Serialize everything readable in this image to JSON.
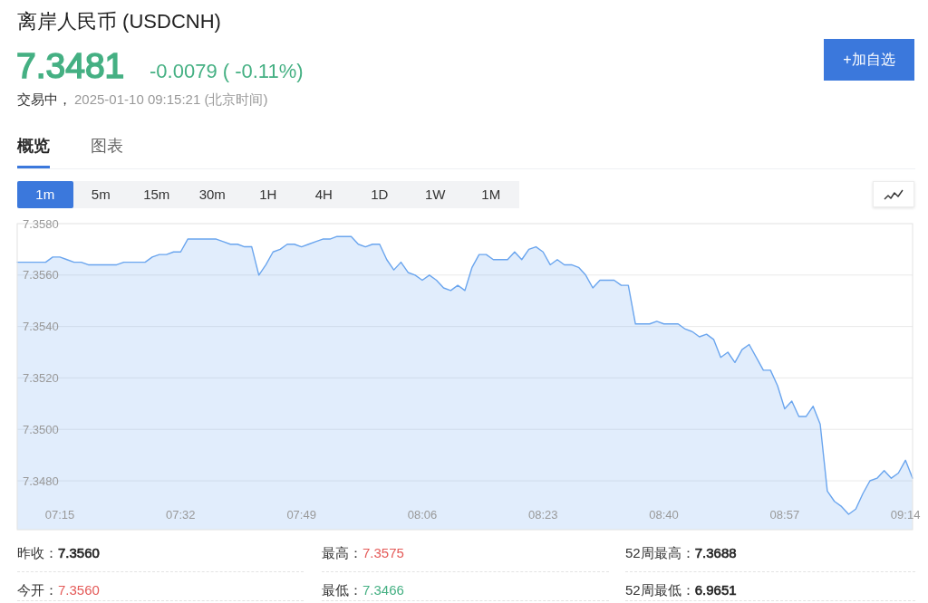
{
  "chart_data": {
    "type": "area",
    "title": "离岸人民币 (USDCNH)",
    "annotations": [
      "7.3481",
      "-0.0079 ( -0.11%)",
      "交易中，",
      "2025-01-10 09:15:21 (北京时间)",
      "+加自选",
      "概览",
      "图表",
      "1m",
      "5m",
      "15m",
      "30m",
      "1H",
      "4H",
      "1D",
      "1W",
      "1M",
      "昨收：",
      "7.3560",
      "最高：",
      "7.3575",
      "52周最高：",
      "7.3688",
      "今开：",
      "7.3560",
      "最低：",
      "7.3466",
      "52周最低：",
      "6.9651"
    ],
    "x": [
      7.15,
      7.1667,
      7.1833,
      7.2,
      7.2167,
      7.2333,
      7.25,
      7.2667,
      7.2833,
      7.3,
      7.3167,
      7.3333,
      7.35,
      7.3667,
      7.3833,
      7.4,
      7.4167,
      7.4333,
      7.45,
      7.4667,
      7.4833,
      7.5,
      7.5167,
      7.5333,
      7.55,
      7.5667,
      7.5833,
      7.6,
      7.6167,
      7.6333,
      7.65,
      7.6667,
      7.6833,
      7.7,
      7.7167,
      7.7333,
      7.75,
      7.7667,
      7.7833,
      7.8,
      7.8167,
      7.8333,
      7.85,
      7.8667,
      7.8833,
      7.9,
      7.9167,
      7.9333,
      7.95,
      7.9667,
      7.9833,
      8,
      8.0167,
      8.0333,
      8.05,
      8.0667,
      8.0833,
      8.1,
      8.1167,
      8.1333,
      8.15,
      8.1667,
      8.1833,
      8.2,
      8.2167,
      8.2333,
      8.25,
      8.2667,
      8.2833,
      8.3,
      8.3167,
      8.3333,
      8.35,
      8.3667,
      8.3833,
      8.4,
      8.4167,
      8.4333,
      8.45,
      8.4667,
      8.4833,
      8.5,
      8.5167,
      8.5333,
      8.55,
      8.5667,
      8.5833,
      8.6,
      8.6167,
      8.6333,
      8.65,
      8.6667,
      8.6833,
      8.7,
      8.7167,
      8.7333,
      8.75,
      8.7667,
      8.7833,
      8.8,
      8.8167,
      8.8333,
      8.85,
      8.8667,
      8.8833,
      8.9,
      8.9167,
      8.9333,
      8.95,
      8.9667,
      8.9833,
      9,
      9.0167,
      9.0333,
      9.05,
      9.0667,
      9.0833,
      9.1,
      9.1167,
      9.1333,
      9.15,
      9.1667,
      9.1833,
      9.2,
      9.2167,
      9.2333,
      9.25
    ],
    "values": [
      7.3565,
      7.3565,
      7.3565,
      7.3565,
      7.3565,
      7.3567,
      7.3567,
      7.3566,
      7.3565,
      7.3565,
      7.3564,
      7.3564,
      7.3564,
      7.3564,
      7.3564,
      7.3565,
      7.3565,
      7.3565,
      7.3565,
      7.3567,
      7.3568,
      7.3568,
      7.3569,
      7.3569,
      7.3574,
      7.3574,
      7.3574,
      7.3574,
      7.3574,
      7.3573,
      7.3572,
      7.3572,
      7.3571,
      7.3571,
      7.356,
      7.3564,
      7.3569,
      7.357,
      7.3572,
      7.3572,
      7.3571,
      7.3572,
      7.3573,
      7.3574,
      7.3574,
      7.3575,
      7.3575,
      7.3575,
      7.3572,
      7.3571,
      7.3572,
      7.3572,
      7.3566,
      7.3562,
      7.3565,
      7.3561,
      7.356,
      7.3558,
      7.356,
      7.3558,
      7.3555,
      7.3554,
      7.3556,
      7.3554,
      7.3563,
      7.3568,
      7.3568,
      7.3566,
      7.3566,
      7.3566,
      7.3569,
      7.3566,
      7.357,
      7.3571,
      7.3569,
      7.3564,
      7.3566,
      7.3564,
      7.3564,
      7.3563,
      7.356,
      7.3555,
      7.3558,
      7.3558,
      7.3558,
      7.3556,
      7.3556,
      7.3541,
      7.3541,
      7.3541,
      7.3542,
      7.3541,
      7.3541,
      7.3541,
      7.3539,
      7.3538,
      7.3536,
      7.3537,
      7.3535,
      7.3528,
      7.353,
      7.3526,
      7.3531,
      7.3533,
      7.3528,
      7.3523,
      7.3523,
      7.3517,
      7.3508,
      7.3511,
      7.3505,
      7.3505,
      7.3509,
      7.3502,
      7.3476,
      7.3472,
      7.347,
      7.3467,
      7.3469,
      7.3475,
      7.348,
      7.3481,
      7.3484,
      7.3481,
      7.3483,
      7.3488,
      7.3481
    ],
    "color": "#6aa5ee",
    "xlim": [
      7.15,
      9.25
    ],
    "xticks": [
      {
        "value": 7.25,
        "label": "07:15"
      },
      {
        "value": 7.5333,
        "label": "07:32"
      },
      {
        "value": 7.8167,
        "label": "07:49"
      },
      {
        "value": 8.1,
        "label": "08:06"
      },
      {
        "value": 8.3833,
        "label": "08:23"
      },
      {
        "value": 8.6667,
        "label": "08:40"
      },
      {
        "value": 8.95,
        "label": "08:57"
      },
      {
        "value": 9.2333,
        "label": "09:14"
      }
    ],
    "ylim": [
      7.3461,
      7.358
    ],
    "yticks": [
      {
        "value": 7.358,
        "label": "7.3580"
      },
      {
        "value": 7.356,
        "label": "7.3560"
      },
      {
        "value": 7.354,
        "label": "7.3540"
      },
      {
        "value": 7.352,
        "label": "7.3520"
      },
      {
        "value": 7.35,
        "label": "7.3500"
      },
      {
        "value": 7.348,
        "label": "7.3480"
      }
    ],
    "grid": "y"
  }
}
